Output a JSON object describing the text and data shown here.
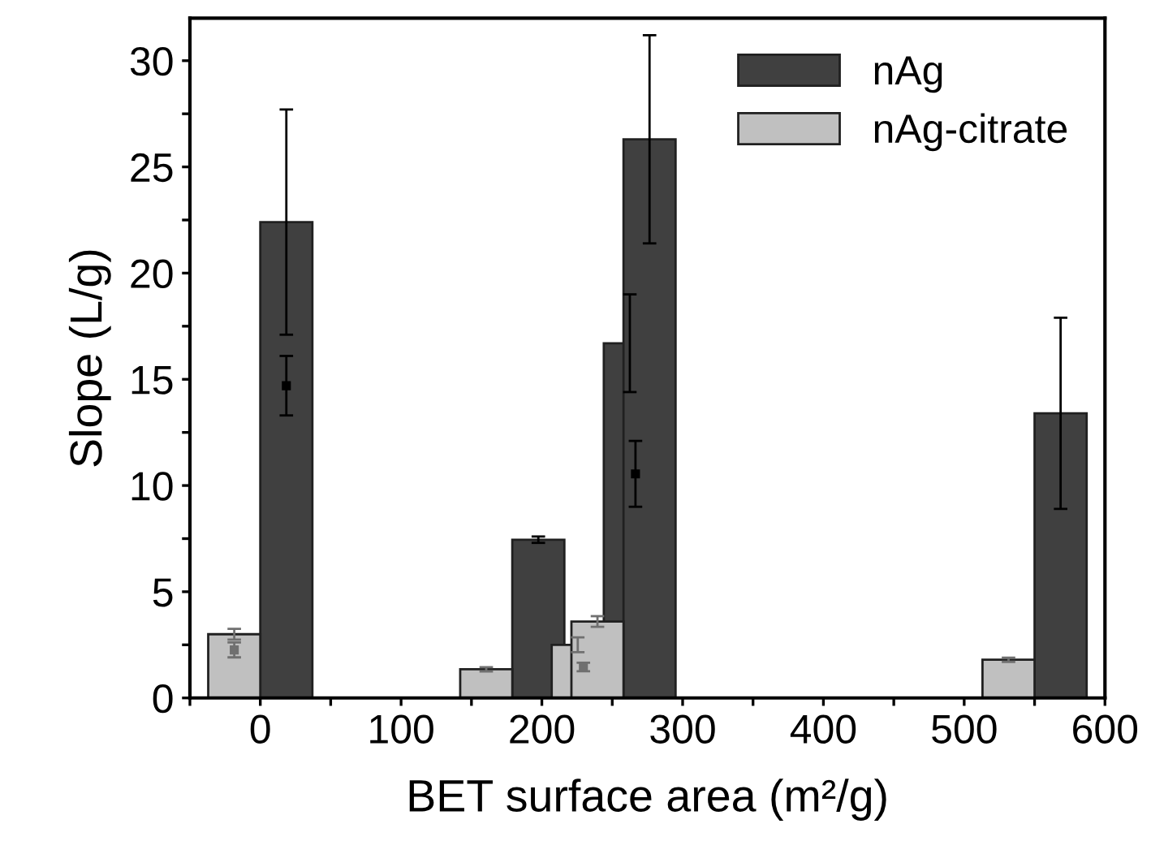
{
  "chart_data": {
    "type": "bar",
    "xlabel": "BET surface area (m²/g)",
    "ylabel": "Slope (L/g)",
    "series": [
      {
        "name": "nAg",
        "color": "#404040",
        "x": [
          18.5,
          197.5,
          262.5,
          276.5,
          568.5
        ],
        "values": [
          22.4,
          7.45,
          16.7,
          26.3,
          13.4
        ],
        "errors": [
          5.3,
          0.15,
          2.3,
          4.9,
          4.5
        ]
      },
      {
        "name": "nAg-citrate",
        "color": "#c0c0c0",
        "x": [
          -18.5,
          160.5,
          225.5,
          239.5,
          531.5
        ],
        "values": [
          3.0,
          1.35,
          2.5,
          3.6,
          1.8
        ],
        "errors": [
          0.25,
          0.1,
          0.35,
          0.25,
          0.1
        ]
      },
      {
        "type": "scatter",
        "marker": "square",
        "color": "#000000",
        "x": [
          18.5,
          266.5
        ],
        "values": [
          14.7,
          10.55
        ],
        "errors": [
          1.4,
          1.55
        ]
      },
      {
        "type": "scatter",
        "marker": "square",
        "color": "#707070",
        "x": [
          -18.5,
          229.5
        ],
        "values": [
          2.26,
          1.46
        ],
        "errors": [
          0.35,
          0.2
        ]
      }
    ],
    "xlim": [
      -50,
      600
    ],
    "ylim": [
      0,
      32
    ],
    "xticks": [
      {
        "value": -50,
        "label": null
      },
      0,
      {
        "value": 50,
        "label": null
      },
      100,
      {
        "value": 150,
        "label": null
      },
      200,
      {
        "value": 250,
        "label": null
      },
      300,
      {
        "value": 350,
        "label": null
      },
      400,
      {
        "value": 450,
        "label": null
      },
      500,
      {
        "value": 550,
        "label": null
      },
      600
    ],
    "yticks": [
      0,
      {
        "value": 2.5,
        "label": null
      },
      5,
      {
        "value": 7.5,
        "label": null
      },
      10,
      {
        "value": 12.5,
        "label": null
      },
      15,
      {
        "value": 17.5,
        "label": null
      },
      20,
      {
        "value": 22.5,
        "label": null
      },
      25,
      {
        "value": 27.5,
        "label": null
      },
      30
    ],
    "legend": "top right",
    "grid": false
  }
}
